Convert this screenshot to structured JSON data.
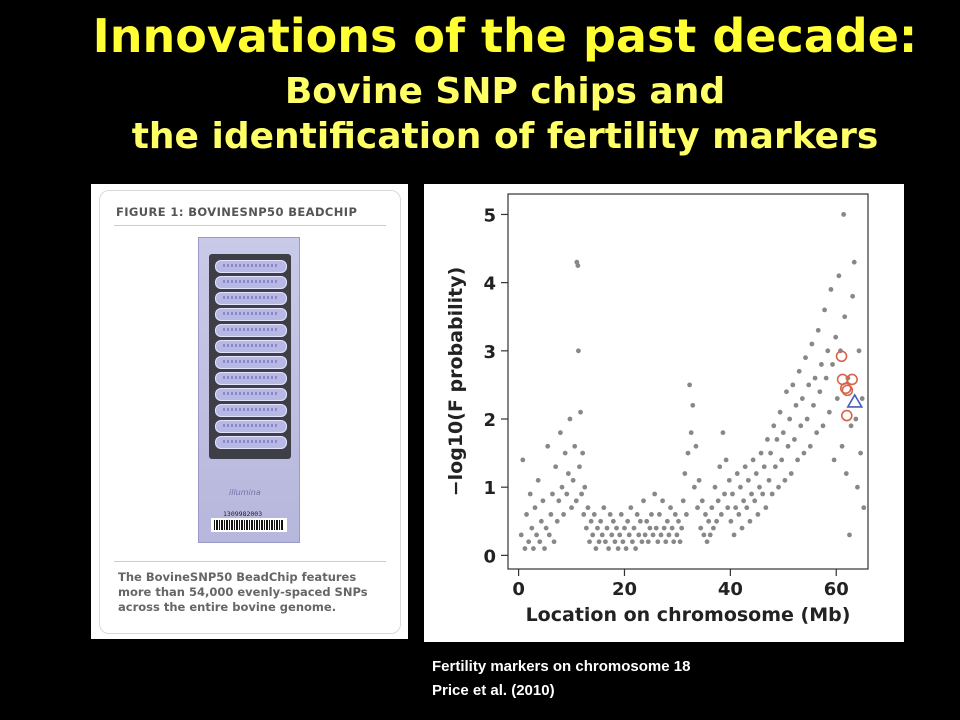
{
  "slide": {
    "title_line1": "Innovations of the past decade:",
    "title_line2": "Bovine SNP chips and",
    "title_line3": "the identification of fertility markers"
  },
  "figure_left": {
    "heading": "FIGURE 1: BOVINESNP50 BEADCHIP",
    "chip_logo": "illumina",
    "chip_barcode": "1309982003",
    "caption": "The BovineSNP50 BeadChip features more than 54,000 evenly-spaced SNPs across the entire bovine genome."
  },
  "figure_right_caption": {
    "line1": "Fertility markers on chromosome 18",
    "line2": "Price et al. (2010)"
  },
  "colors": {
    "title": "#ffff33",
    "background": "#000000",
    "points": "#888888",
    "markers_circle": "#d9634a",
    "marker_triangle": "#4a5bbf"
  },
  "chart_data": {
    "type": "scatter",
    "title": "",
    "xlabel": "Location on chromosome (Mb)",
    "ylabel": "−log10(F probability)",
    "xlim": [
      -2,
      66
    ],
    "ylim": [
      -0.2,
      5.3
    ],
    "xticks": [
      0,
      20,
      40,
      60
    ],
    "yticks": [
      0,
      1,
      2,
      3,
      4,
      5
    ],
    "grid": false,
    "series": [
      {
        "marker": "dot",
        "points": [
          [
            0.5,
            0.3
          ],
          [
            0.8,
            1.4
          ],
          [
            1.2,
            0.1
          ],
          [
            1.5,
            0.6
          ],
          [
            1.9,
            0.2
          ],
          [
            2.2,
            0.9
          ],
          [
            2.5,
            0.4
          ],
          [
            2.8,
            0.1
          ],
          [
            3.1,
            0.7
          ],
          [
            3.4,
            0.3
          ],
          [
            3.7,
            1.1
          ],
          [
            4.0,
            0.2
          ],
          [
            4.3,
            0.5
          ],
          [
            4.6,
            0.8
          ],
          [
            4.9,
            0.1
          ],
          [
            5.2,
            0.4
          ],
          [
            5.5,
            1.6
          ],
          [
            5.8,
            0.3
          ],
          [
            6.1,
            0.6
          ],
          [
            6.4,
            0.9
          ],
          [
            6.7,
            0.2
          ],
          [
            7.0,
            1.3
          ],
          [
            7.3,
            0.5
          ],
          [
            7.6,
            0.8
          ],
          [
            7.9,
            1.8
          ],
          [
            8.2,
            1.0
          ],
          [
            8.5,
            0.6
          ],
          [
            8.8,
            1.5
          ],
          [
            9.1,
            0.9
          ],
          [
            9.4,
            1.2
          ],
          [
            9.7,
            2.0
          ],
          [
            10.0,
            0.7
          ],
          [
            10.3,
            1.1
          ],
          [
            10.6,
            1.6
          ],
          [
            10.9,
            0.8
          ],
          [
            11.0,
            4.3
          ],
          [
            11.2,
            4.25
          ],
          [
            11.3,
            3.0
          ],
          [
            11.5,
            1.3
          ],
          [
            11.7,
            2.1
          ],
          [
            11.9,
            0.9
          ],
          [
            12.1,
            1.5
          ],
          [
            12.3,
            0.6
          ],
          [
            12.5,
            1.0
          ],
          [
            12.8,
            0.4
          ],
          [
            13.1,
            0.7
          ],
          [
            13.4,
            0.2
          ],
          [
            13.7,
            0.5
          ],
          [
            14.0,
            0.3
          ],
          [
            14.3,
            0.6
          ],
          [
            14.6,
            0.1
          ],
          [
            14.9,
            0.4
          ],
          [
            15.2,
            0.2
          ],
          [
            15.5,
            0.5
          ],
          [
            15.8,
            0.3
          ],
          [
            16.1,
            0.7
          ],
          [
            16.4,
            0.2
          ],
          [
            16.7,
            0.4
          ],
          [
            17.0,
            0.1
          ],
          [
            17.3,
            0.6
          ],
          [
            17.6,
            0.3
          ],
          [
            17.9,
            0.5
          ],
          [
            18.2,
            0.2
          ],
          [
            18.5,
            0.4
          ],
          [
            18.8,
            0.1
          ],
          [
            19.1,
            0.3
          ],
          [
            19.4,
            0.6
          ],
          [
            19.7,
            0.2
          ],
          [
            20.0,
            0.4
          ],
          [
            20.3,
            0.1
          ],
          [
            20.6,
            0.5
          ],
          [
            20.9,
            0.3
          ],
          [
            21.2,
            0.7
          ],
          [
            21.5,
            0.2
          ],
          [
            21.8,
            0.4
          ],
          [
            22.1,
            0.1
          ],
          [
            22.4,
            0.6
          ],
          [
            22.7,
            0.3
          ],
          [
            23.0,
            0.5
          ],
          [
            23.3,
            0.2
          ],
          [
            23.6,
            0.8
          ],
          [
            23.9,
            0.3
          ],
          [
            24.2,
            0.5
          ],
          [
            24.5,
            0.2
          ],
          [
            24.8,
            0.4
          ],
          [
            25.1,
            0.6
          ],
          [
            25.4,
            0.3
          ],
          [
            25.7,
            0.9
          ],
          [
            26.0,
            0.4
          ],
          [
            26.3,
            0.2
          ],
          [
            26.6,
            0.6
          ],
          [
            26.9,
            0.3
          ],
          [
            27.2,
            0.8
          ],
          [
            27.5,
            0.4
          ],
          [
            27.8,
            0.2
          ],
          [
            28.1,
            0.5
          ],
          [
            28.4,
            0.3
          ],
          [
            28.7,
            0.7
          ],
          [
            29.0,
            0.4
          ],
          [
            29.3,
            0.2
          ],
          [
            29.6,
            0.6
          ],
          [
            29.9,
            0.3
          ],
          [
            30.2,
            0.5
          ],
          [
            30.5,
            0.2
          ],
          [
            30.8,
            0.4
          ],
          [
            31.1,
            0.8
          ],
          [
            31.4,
            1.2
          ],
          [
            31.7,
            0.6
          ],
          [
            32.0,
            1.5
          ],
          [
            32.3,
            2.5
          ],
          [
            32.6,
            1.8
          ],
          [
            32.9,
            2.2
          ],
          [
            33.2,
            1.0
          ],
          [
            33.5,
            1.6
          ],
          [
            33.8,
            0.7
          ],
          [
            34.1,
            1.1
          ],
          [
            34.4,
            0.4
          ],
          [
            34.7,
            0.8
          ],
          [
            35.0,
            0.3
          ],
          [
            35.3,
            0.6
          ],
          [
            35.6,
            0.2
          ],
          [
            35.9,
            0.5
          ],
          [
            36.2,
            0.3
          ],
          [
            36.5,
            0.7
          ],
          [
            36.8,
            0.4
          ],
          [
            37.1,
            1.0
          ],
          [
            37.4,
            0.5
          ],
          [
            37.7,
            0.8
          ],
          [
            38.0,
            1.3
          ],
          [
            38.3,
            0.6
          ],
          [
            38.6,
            1.8
          ],
          [
            38.9,
            0.9
          ],
          [
            39.2,
            1.4
          ],
          [
            39.5,
            0.7
          ],
          [
            39.8,
            1.1
          ],
          [
            40.1,
            0.5
          ],
          [
            40.4,
            0.9
          ],
          [
            40.7,
            0.3
          ],
          [
            41.0,
            0.7
          ],
          [
            41.3,
            1.2
          ],
          [
            41.6,
            0.6
          ],
          [
            41.9,
            1.0
          ],
          [
            42.2,
            0.4
          ],
          [
            42.5,
            0.8
          ],
          [
            42.8,
            1.3
          ],
          [
            43.1,
            0.7
          ],
          [
            43.4,
            1.1
          ],
          [
            43.7,
            0.5
          ],
          [
            44.0,
            0.9
          ],
          [
            44.3,
            1.4
          ],
          [
            44.6,
            0.8
          ],
          [
            44.9,
            1.2
          ],
          [
            45.2,
            0.6
          ],
          [
            45.5,
            1.0
          ],
          [
            45.8,
            1.5
          ],
          [
            46.1,
            0.9
          ],
          [
            46.4,
            1.3
          ],
          [
            46.7,
            0.7
          ],
          [
            47.0,
            1.7
          ],
          [
            47.3,
            1.1
          ],
          [
            47.6,
            1.5
          ],
          [
            47.9,
            0.9
          ],
          [
            48.2,
            1.9
          ],
          [
            48.5,
            1.3
          ],
          [
            48.8,
            1.7
          ],
          [
            49.1,
            1.0
          ],
          [
            49.4,
            2.1
          ],
          [
            49.7,
            1.4
          ],
          [
            50.0,
            1.8
          ],
          [
            50.3,
            1.1
          ],
          [
            50.6,
            2.4
          ],
          [
            50.9,
            1.6
          ],
          [
            51.2,
            2.0
          ],
          [
            51.5,
            1.2
          ],
          [
            51.8,
            2.5
          ],
          [
            52.1,
            1.7
          ],
          [
            52.4,
            2.2
          ],
          [
            52.7,
            1.4
          ],
          [
            53.0,
            2.7
          ],
          [
            53.3,
            1.9
          ],
          [
            53.6,
            2.3
          ],
          [
            53.9,
            1.5
          ],
          [
            54.2,
            2.9
          ],
          [
            54.5,
            2.0
          ],
          [
            54.8,
            2.5
          ],
          [
            55.1,
            1.6
          ],
          [
            55.4,
            3.1
          ],
          [
            55.7,
            2.2
          ],
          [
            56.0,
            2.6
          ],
          [
            56.3,
            1.8
          ],
          [
            56.6,
            3.3
          ],
          [
            56.9,
            2.4
          ],
          [
            57.2,
            2.8
          ],
          [
            57.5,
            1.9
          ],
          [
            57.8,
            3.6
          ],
          [
            58.1,
            2.6
          ],
          [
            58.4,
            3.0
          ],
          [
            58.7,
            2.1
          ],
          [
            59.0,
            3.9
          ],
          [
            59.3,
            2.8
          ],
          [
            59.6,
            1.4
          ],
          [
            59.9,
            3.2
          ],
          [
            60.2,
            2.3
          ],
          [
            60.5,
            4.1
          ],
          [
            60.8,
            3.0
          ],
          [
            61.1,
            1.6
          ],
          [
            61.4,
            5.0
          ],
          [
            61.6,
            3.5
          ],
          [
            61.9,
            1.2
          ],
          [
            62.2,
            2.6
          ],
          [
            62.5,
            0.3
          ],
          [
            62.8,
            1.9
          ],
          [
            63.1,
            3.8
          ],
          [
            63.4,
            4.3
          ],
          [
            63.7,
            2.0
          ],
          [
            64.0,
            1.0
          ],
          [
            64.3,
            3.0
          ],
          [
            64.6,
            1.5
          ],
          [
            64.9,
            2.3
          ],
          [
            65.2,
            0.7
          ]
        ]
      },
      {
        "marker": "circle",
        "points": [
          [
            61.0,
            2.92
          ],
          [
            61.2,
            2.58
          ],
          [
            61.8,
            2.45
          ],
          [
            62.1,
            2.42
          ],
          [
            63.0,
            2.58
          ],
          [
            62.0,
            2.05
          ]
        ]
      },
      {
        "marker": "triangle",
        "points": [
          [
            63.5,
            2.25
          ]
        ]
      }
    ]
  }
}
